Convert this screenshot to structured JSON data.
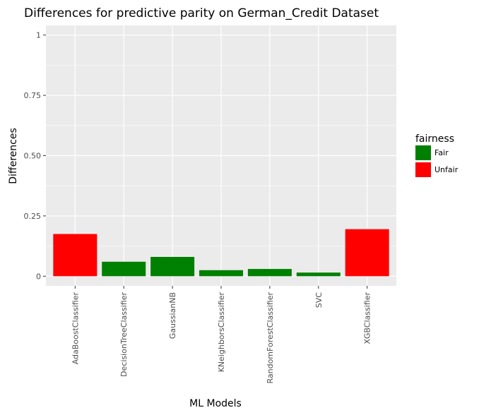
{
  "chart_data": {
    "type": "bar",
    "title": "Differences for predictive parity on German_Credit Dataset",
    "xlabel": "ML Models",
    "ylabel": "Differences",
    "ylim": [
      -0.04,
      1.04
    ],
    "yticks": [
      0,
      0.25,
      0.5,
      0.75,
      1
    ],
    "ytick_labels": [
      "0",
      "0.25",
      "0.50",
      "0.75",
      "1"
    ],
    "grid": true,
    "legend_position": "right",
    "categories": [
      "AdaBoostClassifier",
      "DecisionTreeClassifier",
      "GaussianNB",
      "KNeighborsClassifier",
      "RandomForestClassifier",
      "SVC",
      "XGBClassifier"
    ],
    "values": [
      0.175,
      0.06,
      0.08,
      0.025,
      0.03,
      0.015,
      0.195
    ],
    "fairness": [
      "Unfair",
      "Fair",
      "Fair",
      "Fair",
      "Fair",
      "Fair",
      "Unfair"
    ],
    "legend": {
      "title": "fairness",
      "entries": [
        {
          "label": "Fair",
          "color": "#008000"
        },
        {
          "label": "Unfair",
          "color": "#ff0000"
        }
      ]
    },
    "colors": {
      "Fair": "#008000",
      "Unfair": "#ff0000"
    }
  }
}
